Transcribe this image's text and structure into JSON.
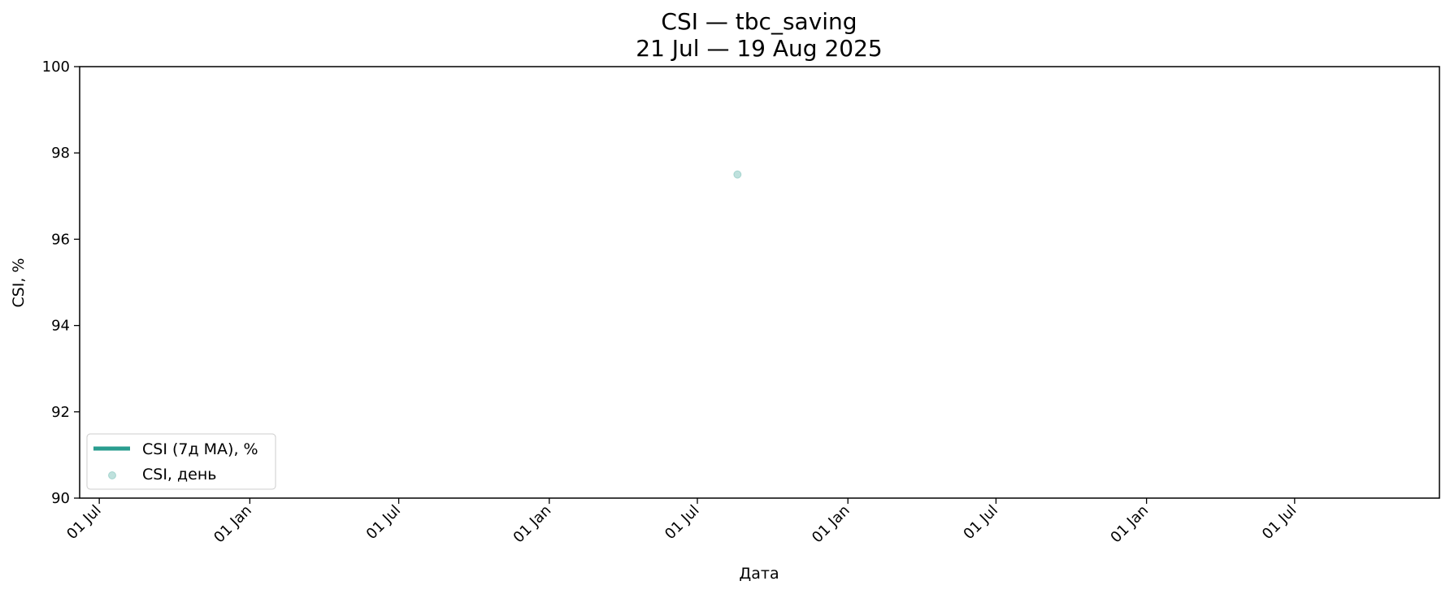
{
  "chart_data": {
    "type": "line",
    "title": "CSI — tbc_saving",
    "subtitle": "21 Jul — 19 Aug 2025",
    "xlabel": "Дата",
    "ylabel": "CSI, %",
    "ylim": [
      90,
      100
    ],
    "yticks": [
      90,
      92,
      94,
      96,
      98,
      100
    ],
    "xlim": [
      "2023-06-07",
      "2027-12-25"
    ],
    "xticks": [
      {
        "date": "2023-07-01",
        "label": "01 Jul"
      },
      {
        "date": "2024-01-01",
        "label": "01 Jan"
      },
      {
        "date": "2024-07-01",
        "label": "01 Jul"
      },
      {
        "date": "2025-01-01",
        "label": "01 Jan"
      },
      {
        "date": "2025-07-01",
        "label": "01 Jul"
      },
      {
        "date": "2026-01-01",
        "label": "01 Jan"
      },
      {
        "date": "2026-07-01",
        "label": "01 Jul"
      },
      {
        "date": "2027-01-01",
        "label": "01 Jan"
      },
      {
        "date": "2027-07-01",
        "label": "01 Jul"
      }
    ],
    "series": [
      {
        "name": "CSI (7д MA), %",
        "kind": "line",
        "color": "#2a9d8f",
        "points": []
      },
      {
        "name": "CSI, день",
        "kind": "scatter",
        "color": "#2a9d8f",
        "points": [
          {
            "x": "2025-08-19",
            "y": 97.5
          }
        ]
      }
    ],
    "legend_position": "lower-left",
    "grid": false
  }
}
